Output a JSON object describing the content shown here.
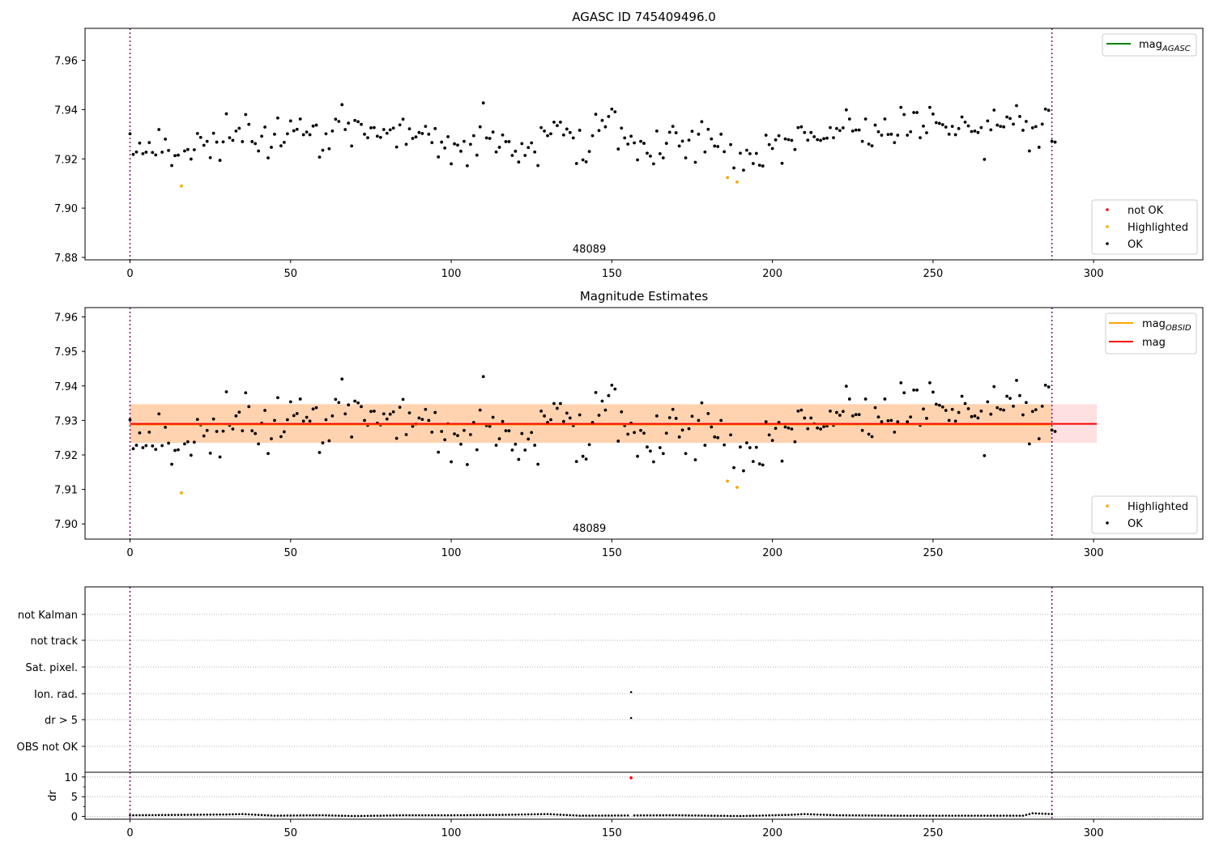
{
  "chart_data": [
    {
      "type": "scatter",
      "title": "AGASC ID 745409496.0",
      "xlim": [
        -14,
        334
      ],
      "ylim": [
        7.879,
        7.973
      ],
      "xticks": [
        0,
        50,
        100,
        150,
        200,
        250,
        300
      ],
      "yticks": [
        7.88,
        7.9,
        7.92,
        7.94,
        7.96
      ],
      "ytick_labels": [
        "7.88",
        "7.90",
        "7.92",
        "7.94",
        "7.96"
      ],
      "obsid_label": "48089",
      "obsid_label_x": 143,
      "obs_boundaries": [
        0,
        287
      ],
      "legend_lines": [
        {
          "label": "mag",
          "sub": "AGASC",
          "color": "#008000"
        }
      ],
      "legend_points": [
        {
          "label": "not OK",
          "color": "#ff0000"
        },
        {
          "label": "Highlighted",
          "color": "#ffa500"
        },
        {
          "label": "OK",
          "color": "#000000"
        }
      ],
      "grid": false
    },
    {
      "type": "scatter",
      "title": "Magnitude Estimates",
      "xlim": [
        -14,
        334
      ],
      "ylim": [
        7.8956,
        7.9627
      ],
      "xticks": [
        0,
        50,
        100,
        150,
        200,
        250,
        300
      ],
      "yticks": [
        7.9,
        7.91,
        7.92,
        7.93,
        7.94,
        7.95,
        7.96
      ],
      "ytick_labels": [
        "7.90",
        "7.91",
        "7.92",
        "7.93",
        "7.94",
        "7.95",
        "7.96"
      ],
      "obsid_label": "48089",
      "obsid_label_x": 143,
      "obs_boundaries": [
        0,
        287
      ],
      "mag_obsid": 7.9288,
      "mag_obsid_band": [
        7.9235,
        7.9347
      ],
      "mag_obsid_range": [
        0,
        287
      ],
      "mag": 7.929,
      "mag_band": [
        7.9235,
        7.9347
      ],
      "mag_range": [
        0,
        301
      ],
      "legend_lines": [
        {
          "label": "mag",
          "sub": "OBSID",
          "color": "#ffa500"
        },
        {
          "label": "mag",
          "sub": "",
          "color": "#ff0000"
        }
      ],
      "legend_points": [
        {
          "label": "Highlighted",
          "color": "#ffa500"
        },
        {
          "label": "OK",
          "color": "#000000"
        }
      ],
      "grid": false
    },
    {
      "type": "scatter",
      "title": "",
      "xlim": [
        -14,
        334
      ],
      "flag_labels": [
        "not Kalman",
        "not track",
        "Sat. pixel.",
        "Ion. rad.",
        "dr > 5",
        "OBS not OK"
      ],
      "flags": {
        "Ion. rad.": [
          156
        ],
        "dr > 5": [
          156
        ]
      },
      "obs_boundaries": [
        0,
        287
      ],
      "grid": true
    },
    {
      "type": "scatter",
      "title": "",
      "ylabel": "dr",
      "xlim": [
        -14,
        334
      ],
      "ylim": [
        -0.7,
        11.2
      ],
      "xticks": [
        0,
        50,
        100,
        150,
        200,
        250,
        300
      ],
      "yticks": [
        0,
        5,
        10
      ],
      "ytick_labels": [
        "0",
        "5",
        "10"
      ],
      "dr_outlier": {
        "x": 156,
        "y": 9.8
      },
      "dr_curve": [
        [
          0,
          0.3
        ],
        [
          30,
          0.5
        ],
        [
          35,
          0.6
        ],
        [
          45,
          0.2
        ],
        [
          60,
          0.3
        ],
        [
          70,
          0.1
        ],
        [
          85,
          0.3
        ],
        [
          100,
          0.3
        ],
        [
          115,
          0.4
        ],
        [
          130,
          0.6
        ],
        [
          140,
          0.2
        ],
        [
          170,
          0.3
        ],
        [
          190,
          0.1
        ],
        [
          205,
          0.4
        ],
        [
          210,
          0.6
        ],
        [
          220,
          0.3
        ],
        [
          240,
          0.2
        ],
        [
          265,
          0.2
        ],
        [
          278,
          0.2
        ],
        [
          281,
          0.8
        ],
        [
          287,
          0.6
        ]
      ],
      "obs_boundaries": [
        0,
        287
      ],
      "grid": true
    }
  ],
  "series": {
    "count": 288,
    "ok_mag": [
      7.9302,
      7.9218,
      7.9228,
      7.9264,
      7.9221,
      7.9227,
      7.9266,
      7.9226,
      7.9216,
      7.9319,
      7.9227,
      7.928,
      7.9234,
      7.9173,
      7.9213,
      7.9215,
      7.909,
      7.9232,
      7.9238,
      7.9199,
      7.9237,
      7.9303,
      7.9287,
      7.9255,
      7.9271,
      7.9205,
      7.9304,
      7.9268,
      7.9194,
      7.9269,
      7.9383,
      7.9286,
      7.9275,
      7.9313,
      7.9324,
      7.927,
      7.938,
      7.934,
      7.927,
      7.9262,
      7.9232,
      7.9292,
      7.9329,
      7.9204,
      7.9247,
      7.93,
      7.9366,
      7.9253,
      7.9267,
      7.9302,
      7.9354,
      7.9314,
      7.932,
      7.9362,
      7.9298,
      7.9309,
      7.9298,
      7.9333,
      7.9337,
      7.9207,
      7.9235,
      7.9302,
      7.9241,
      7.9313,
      7.9361,
      7.9352,
      7.942,
      7.9319,
      7.9345,
      7.9252,
      7.9356,
      7.9351,
      7.934,
      7.93,
      7.9286,
      7.9326,
      7.9327,
      7.9292,
      7.9287,
      7.9319,
      7.9304,
      7.9318,
      7.9325,
      7.9248,
      7.9338,
      7.9361,
      7.9259,
      7.9322,
      7.9283,
      7.9289,
      7.9307,
      7.9303,
      7.9332,
      7.93,
      7.9266,
      7.9323,
      7.9208,
      7.9268,
      7.9244,
      7.929,
      7.918,
      7.9261,
      7.9256,
      7.9231,
      7.9271,
      7.9172,
      7.9259,
      7.9294,
      7.9215,
      7.933,
      7.9427,
      7.9285,
      7.9283,
      7.9309,
      7.9228,
      7.9247,
      7.9297,
      7.927,
      7.927,
      7.9214,
      7.9231,
      7.9187,
      7.9262,
      7.9214,
      7.9246,
      7.9265,
      7.9228,
      7.9173,
      7.9327,
      7.9313,
      7.9294,
      7.9302,
      7.9349,
      7.9335,
      7.9349,
      7.9297,
      7.9321,
      7.9307,
      7.9285,
      7.9181,
      7.9316,
      7.9196,
      7.9188,
      7.923,
      7.9294,
      7.9381,
      7.9315,
      7.9356,
      7.933,
      7.9372,
      7.9402,
      7.9391,
      7.924,
      7.9325,
      7.9285,
      7.926,
      7.9292,
      7.9265,
      7.9196,
      7.9271,
      7.9263,
      7.9223,
      7.9211,
      7.918,
      7.9313,
      7.9221,
      7.9204,
      7.9263,
      7.9308,
      7.9332,
      7.9306,
      7.9252,
      7.9272,
      7.9204,
      7.9276,
      7.9312,
      7.9186,
      7.93,
      7.9351,
      7.9228,
      7.932,
      7.9281,
      7.9252,
      7.925,
      7.93,
      7.9229,
      7.9124,
      7.9258,
      7.9163,
      7.9106,
      7.9223,
      7.9154,
      7.9235,
      7.9221,
      7.9181,
      7.9222,
      7.9174,
      7.9171,
      7.9296,
      7.9258,
      7.9242,
      7.9277,
      7.9294,
      7.9182,
      7.9281,
      7.9278,
      7.9275,
      7.9238,
      7.9327,
      7.933,
      7.9307,
      7.9276,
      7.9307,
      7.929,
      7.9278,
      7.9275,
      7.9282,
      7.9284,
      7.9327,
      7.9286,
      7.9323,
      7.9315,
      7.9326,
      7.9399,
      7.9362,
      7.9313,
      7.9317,
      7.9317,
      7.9271,
      7.9362,
      7.926,
      7.9253,
      7.9337,
      7.931,
      7.9296,
      7.9362,
      7.9299,
      7.93,
      7.9266,
      7.9296,
      7.9409,
      7.938,
      7.9296,
      7.931,
      7.9388,
      7.9388,
      7.9286,
      7.9333,
      7.9306,
      7.9409,
      7.9382,
      7.9347,
      7.9344,
      7.9339,
      7.9329,
      7.93,
      7.9332,
      7.9298,
      7.9323,
      7.937,
      7.9349,
      7.9334,
      7.9311,
      7.9313,
      7.9307,
      7.9327,
      7.9198,
      7.9354,
      7.9318,
      7.9398,
      7.9337,
      7.9332,
      7.933,
      7.937,
      7.9364,
      7.9341,
      7.9416,
      7.9372,
      7.9316,
      7.9352,
      7.9232,
      7.9326,
      7.9331,
      7.9247,
      7.9341,
      7.9402,
      7.9397,
      7.9272,
      7.9268
    ],
    "highlighted": [
      [
        16,
        7.909
      ],
      [
        186,
        7.9124
      ],
      [
        189,
        7.9106
      ]
    ],
    "highlighted_index": [
      16,
      186,
      189
    ]
  },
  "footer_axis": {
    "xticks_labels": [
      "0",
      "50",
      "100",
      "150",
      "200",
      "250",
      "300"
    ]
  }
}
